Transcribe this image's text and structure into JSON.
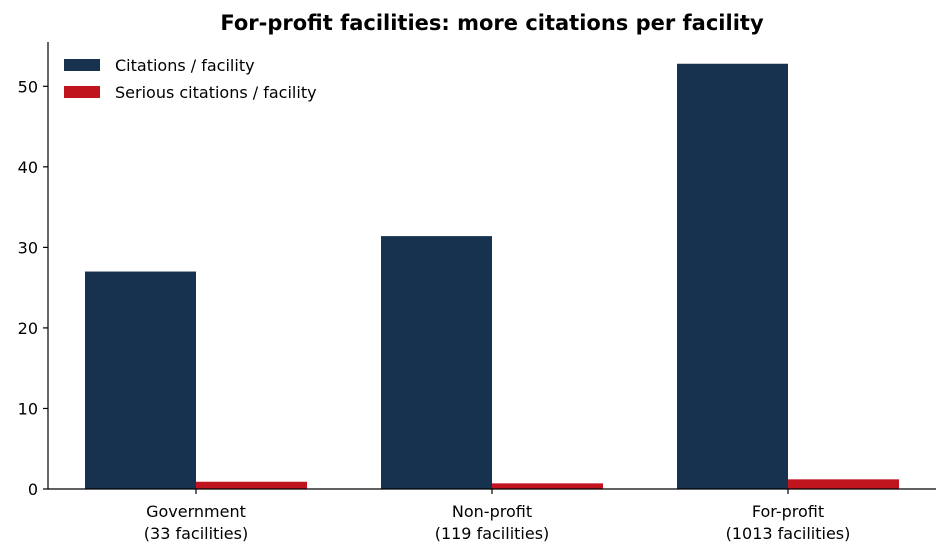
{
  "chart_data": {
    "type": "bar",
    "title": "For-profit facilities: more citations per facility",
    "xlabel": "",
    "ylabel": "",
    "categories": [
      [
        "Government",
        "(33 facilities)"
      ],
      [
        "Non-profit",
        "(119 facilities)"
      ],
      [
        "For-profit",
        "(1013 facilities)"
      ]
    ],
    "series": [
      {
        "name": "Citations / facility",
        "color": "#16324f",
        "values": [
          27.0,
          31.4,
          52.8
        ]
      },
      {
        "name": "Serious citations / facility",
        "color": "#c0141f",
        "values": [
          0.9,
          0.7,
          1.2
        ]
      }
    ],
    "ylim": [
      0,
      55.5
    ],
    "yticks": [
      0,
      10,
      20,
      30,
      40,
      50
    ],
    "legend": "top-left",
    "grid": false
  }
}
